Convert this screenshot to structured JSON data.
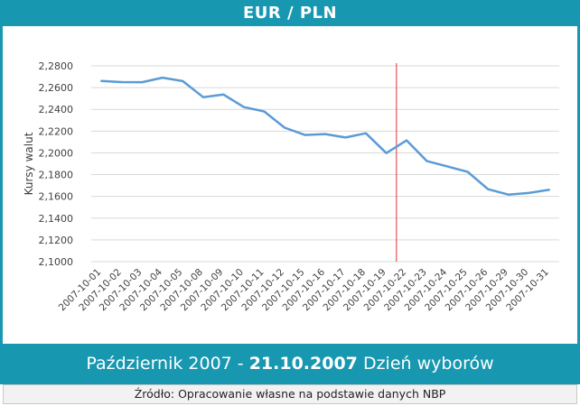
{
  "header": {
    "title": "EUR / PLN"
  },
  "footer": {
    "prefix": "Październik 2007 - ",
    "highlight": "21.10.2007",
    "suffix": " Dzień wyborów",
    "source": "Źródło: Opracowanie własne na podstawie danych NBP"
  },
  "colors": {
    "accent": "#1797b0",
    "line": "#5b9bd5",
    "marker_line": "#e03030",
    "grid": "#d9d9d9"
  },
  "chart_data": {
    "type": "line",
    "title": "EUR / PLN",
    "ylabel": "Kursy walut",
    "xlabel": "",
    "ylim": [
      2.1,
      2.28
    ],
    "yticks": [
      2.1,
      2.12,
      2.14,
      2.16,
      2.18,
      2.2,
      2.22,
      2.24,
      2.26,
      2.28
    ],
    "ytick_labels": [
      "2,1000",
      "2,1200",
      "2,1400",
      "2,1600",
      "2,1800",
      "2,2000",
      "2,2200",
      "2,2400",
      "2,2600",
      "2,2800"
    ],
    "grid": true,
    "categories": [
      "2007-10-01",
      "2007-10-02",
      "2007-10-03",
      "2007-10-04",
      "2007-10-05",
      "2007-10-08",
      "2007-10-09",
      "2007-10-10",
      "2007-10-11",
      "2007-10-12",
      "2007-10-15",
      "2007-10-16",
      "2007-10-17",
      "2007-10-18",
      "2007-10-19",
      "2007-10-22",
      "2007-10-23",
      "2007-10-24",
      "2007-10-25",
      "2007-10-26",
      "2007-10-29",
      "2007-10-30",
      "2007-10-31"
    ],
    "series": [
      {
        "values": [
          2.2661,
          2.2651,
          2.265,
          2.2691,
          2.266,
          2.2512,
          2.2536,
          2.2421,
          2.2381,
          2.2232,
          2.2165,
          2.2173,
          2.2141,
          2.218,
          2.1998,
          2.2115,
          2.1924,
          2.1876,
          2.1825,
          2.1666,
          2.1616,
          2.1631,
          2.166
        ]
      }
    ],
    "vertical_marker_between": [
      "2007-10-19",
      "2007-10-22"
    ]
  }
}
